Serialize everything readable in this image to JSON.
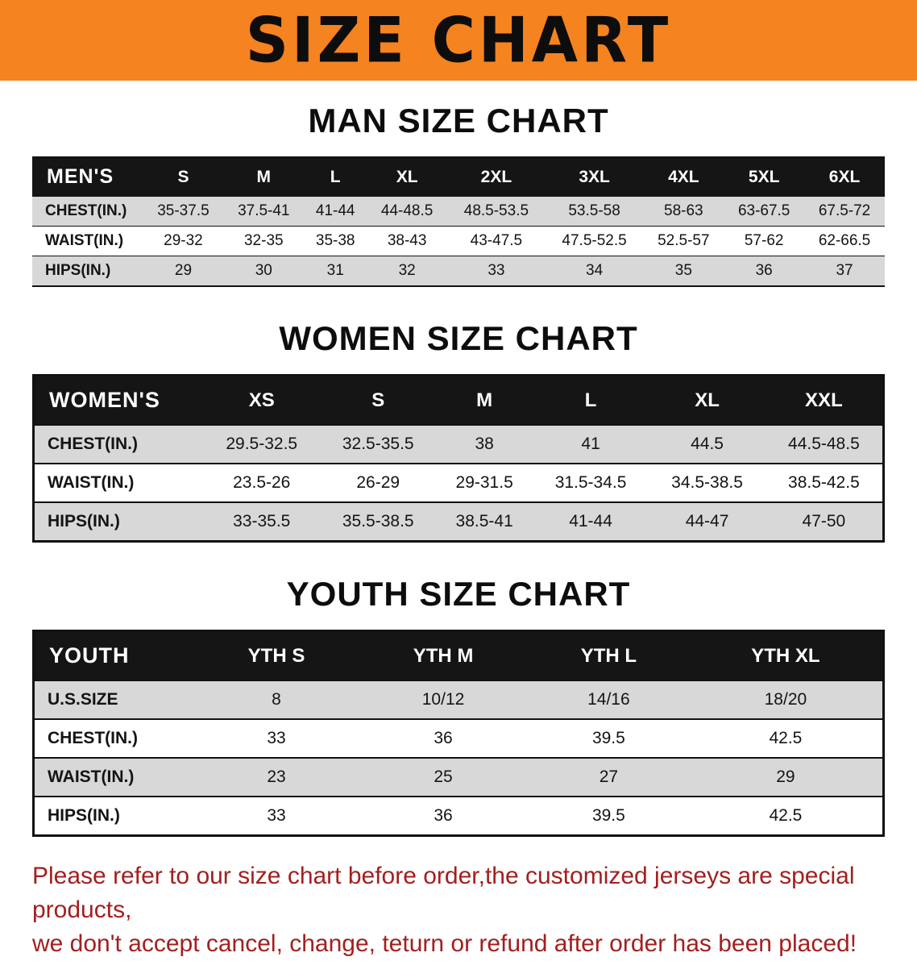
{
  "banner": {
    "title": "SIZE CHART"
  },
  "sections": [
    {
      "heading": "MAN SIZE CHART",
      "table": {
        "header": [
          "MEN'S",
          "S",
          "M",
          "L",
          "XL",
          "2XL",
          "3XL",
          "4XL",
          "5XL",
          "6XL"
        ],
        "rows": [
          [
            "CHEST(IN.)",
            "35-37.5",
            "37.5-41",
            "41-44",
            "44-48.5",
            "48.5-53.5",
            "53.5-58",
            "58-63",
            "63-67.5",
            "67.5-72"
          ],
          [
            "WAIST(IN.)",
            "29-32",
            "32-35",
            "35-38",
            "38-43",
            "43-47.5",
            "47.5-52.5",
            "52.5-57",
            "57-62",
            "62-66.5"
          ],
          [
            "HIPS(IN.)",
            "29",
            "30",
            "31",
            "32",
            "33",
            "34",
            "35",
            "36",
            "37"
          ]
        ]
      }
    },
    {
      "heading": "WOMEN SIZE CHART",
      "table": {
        "header": [
          "WOMEN'S",
          "XS",
          "S",
          "M",
          "L",
          "XL",
          "XXL"
        ],
        "rows": [
          [
            "CHEST(IN.)",
            "29.5-32.5",
            "32.5-35.5",
            "38",
            "41",
            "44.5",
            "44.5-48.5"
          ],
          [
            "WAIST(IN.)",
            "23.5-26",
            "26-29",
            "29-31.5",
            "31.5-34.5",
            "34.5-38.5",
            "38.5-42.5"
          ],
          [
            "HIPS(IN.)",
            "33-35.5",
            "35.5-38.5",
            "38.5-41",
            "41-44",
            "44-47",
            "47-50"
          ]
        ]
      }
    },
    {
      "heading": "YOUTH SIZE CHART",
      "table": {
        "header": [
          "YOUTH",
          "YTH S",
          "YTH M",
          "YTH L",
          "YTH XL"
        ],
        "rows": [
          [
            "U.S.SIZE",
            "8",
            "10/12",
            "14/16",
            "18/20"
          ],
          [
            "CHEST(IN.)",
            "33",
            "36",
            "39.5",
            "42.5"
          ],
          [
            "WAIST(IN.)",
            "23",
            "25",
            "27",
            "29"
          ],
          [
            "HIPS(IN.)",
            "33",
            "36",
            "39.5",
            "42.5"
          ]
        ]
      }
    }
  ],
  "footer": {
    "line1": "Please refer to our size chart before order,the customized jerseys are special products,",
    "line2": "we don't accept cancel, change, teturn or refund after order has been placed!"
  },
  "colors": {
    "banner_bg": "#F5831F",
    "header_row_bg": "#151515",
    "shaded_row_bg": "#D8D8D8",
    "footer_text": "#A31F1F"
  }
}
